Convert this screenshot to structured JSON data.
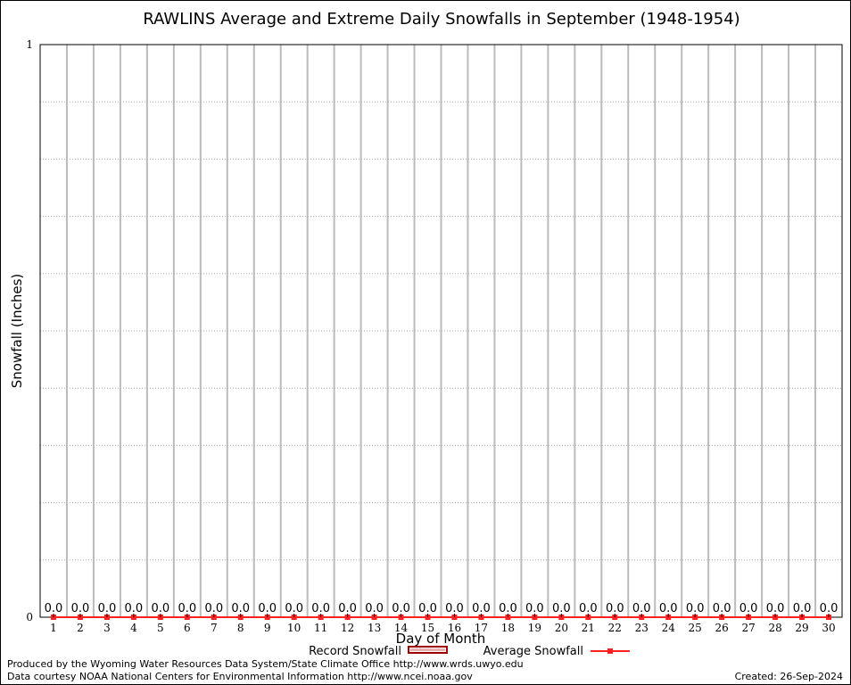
{
  "chart_data": {
    "type": "line",
    "title": "RAWLINS Average and Extreme Daily Snowfalls in September (1948-1954)",
    "xlabel": "Day of Month",
    "ylabel": "Snowfall (Inches)",
    "x": [
      1,
      2,
      3,
      4,
      5,
      6,
      7,
      8,
      9,
      10,
      11,
      12,
      13,
      14,
      15,
      16,
      17,
      18,
      19,
      20,
      21,
      22,
      23,
      24,
      25,
      26,
      27,
      28,
      29,
      30
    ],
    "ylim": [
      0,
      1
    ],
    "yticks": [
      "0",
      "1"
    ],
    "grid": true,
    "legend_position": "bottom",
    "series": [
      {
        "name": "Record Snowfall",
        "type": "bar",
        "color": "#a00000",
        "values": [
          0,
          0,
          0,
          0,
          0,
          0,
          0,
          0,
          0,
          0,
          0,
          0,
          0,
          0,
          0,
          0,
          0,
          0,
          0,
          0,
          0,
          0,
          0,
          0,
          0,
          0,
          0,
          0,
          0,
          0
        ]
      },
      {
        "name": "Average Snowfall",
        "type": "line",
        "color": "#ff2020",
        "values": [
          0,
          0,
          0,
          0,
          0,
          0,
          0,
          0,
          0,
          0,
          0,
          0,
          0,
          0,
          0,
          0,
          0,
          0,
          0,
          0,
          0,
          0,
          0,
          0,
          0,
          0,
          0,
          0,
          0,
          0
        ],
        "labels": [
          "0.0",
          "0.0",
          "0.0",
          "0.0",
          "0.0",
          "0.0",
          "0.0",
          "0.0",
          "0.0",
          "0.0",
          "0.0",
          "0.0",
          "0.0",
          "0.0",
          "0.0",
          "0.0",
          "0.0",
          "0.0",
          "0.0",
          "0.0",
          "0.0",
          "0.0",
          "0.0",
          "0.0",
          "0.0",
          "0.0",
          "0.0",
          "0.0",
          "0.0",
          "0.0"
        ]
      }
    ]
  },
  "footer": {
    "produced": "Produced by the Wyoming Water Resources Data System/State Climate Office http://www.wrds.uwyo.edu",
    "courtesy": "Data courtesy NOAA National Centers for Environmental Information http://www.ncei.noaa.gov",
    "created": "Created: 26-Sep-2024"
  }
}
